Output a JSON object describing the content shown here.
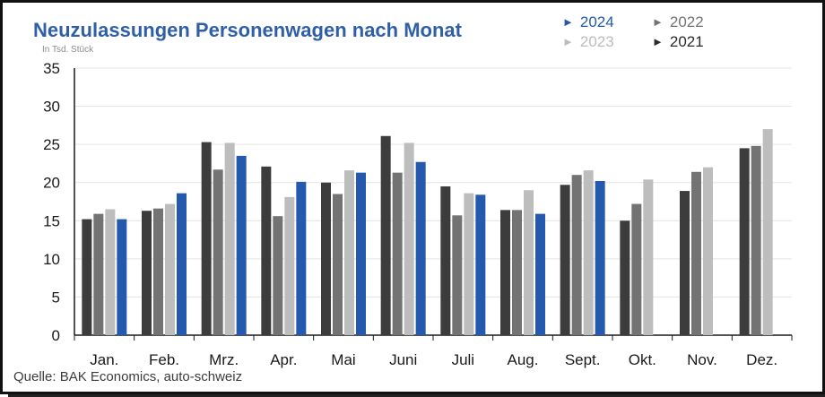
{
  "chart_data": {
    "type": "bar",
    "title": "Neuzulassungen Personenwagen nach Monat",
    "subtitle": "In Tsd. Stück",
    "source": "Quelle: BAK Economics, auto-schweiz",
    "categories": [
      "Jan.",
      "Feb.",
      "Mrz.",
      "Apr.",
      "Mai",
      "Juni",
      "Juli",
      "Aug.",
      "Sept.",
      "Okt.",
      "Nov.",
      "Dez."
    ],
    "ylim": [
      0,
      35
    ],
    "yticks": [
      "0",
      "5",
      "10",
      "15",
      "20",
      "25",
      "30",
      "35"
    ],
    "grid": true,
    "legend_position": "top-right",
    "series": [
      {
        "name": "2021",
        "color": "#3c3c3c",
        "values": [
          15.2,
          16.3,
          25.3,
          22.1,
          20.0,
          26.1,
          19.5,
          16.4,
          19.7,
          15.0,
          18.9,
          24.5
        ]
      },
      {
        "name": "2022",
        "color": "#737373",
        "values": [
          15.9,
          16.6,
          21.7,
          15.6,
          18.5,
          21.3,
          15.7,
          16.4,
          21.0,
          17.2,
          21.4,
          24.8
        ]
      },
      {
        "name": "2023",
        "color": "#bdbdbd",
        "values": [
          16.5,
          17.2,
          25.2,
          18.1,
          21.6,
          25.2,
          18.6,
          19.0,
          21.6,
          20.4,
          22.0,
          27.0
        ]
      },
      {
        "name": "2024",
        "color": "#2459ad",
        "values": [
          15.2,
          18.6,
          23.5,
          20.1,
          21.3,
          22.7,
          18.4,
          15.9,
          20.2,
          null,
          null,
          null
        ]
      }
    ]
  },
  "legend": [
    {
      "name": "2024",
      "color": "#2459ad",
      "marker": "►"
    },
    {
      "name": "2022",
      "color": "#737373",
      "marker": "►"
    },
    {
      "name": "2023",
      "color": "#bdbdbd",
      "marker": "►"
    },
    {
      "name": "2021",
      "color": "#2a2a2a",
      "marker": "►"
    }
  ]
}
